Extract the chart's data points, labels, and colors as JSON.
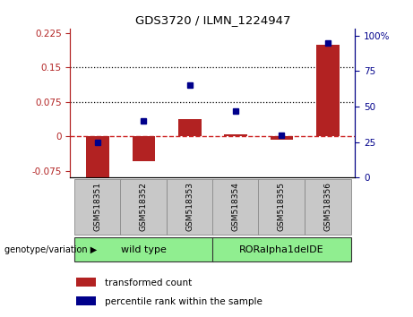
{
  "title": "GDS3720 / ILMN_1224947",
  "categories": [
    "GSM518351",
    "GSM518352",
    "GSM518353",
    "GSM518354",
    "GSM518355",
    "GSM518356"
  ],
  "red_values": [
    -0.095,
    -0.055,
    0.038,
    0.005,
    -0.008,
    0.2
  ],
  "blue_values": [
    25,
    40,
    65,
    47,
    30,
    95
  ],
  "left_ylim": [
    -0.09,
    0.235
  ],
  "right_ylim": [
    0,
    105
  ],
  "left_yticks": [
    -0.075,
    0,
    0.075,
    0.15,
    0.225
  ],
  "right_yticks": [
    0,
    25,
    50,
    75,
    100
  ],
  "hlines": [
    0.075,
    0.15
  ],
  "red_color": "#b22222",
  "blue_color": "#00008b",
  "dashed_line_color": "#cc2222",
  "bar_width": 0.5,
  "group1_label": "wild type",
  "group2_label": "RORalpha1delDE",
  "group1_color": "#90ee90",
  "group2_color": "#90ee90",
  "sample_box_color": "#c8c8c8",
  "legend_red": "transformed count",
  "legend_blue": "percentile rank within the sample",
  "genotype_label": "genotype/variation"
}
